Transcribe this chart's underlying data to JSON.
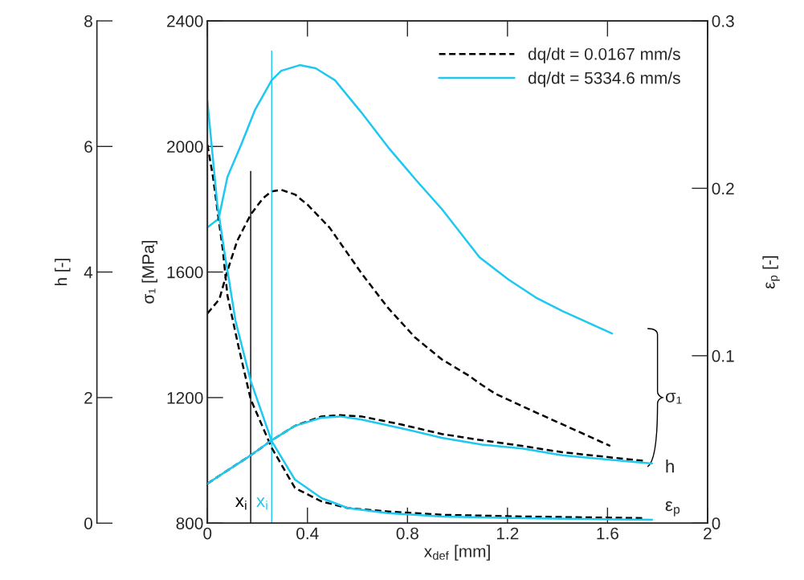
{
  "chart_data": {
    "type": "line",
    "xlabel": "x$_{def}$ [mm]",
    "ylabel": "σ₁ [MPa]",
    "y2label": "ε$_{p}$ [-]",
    "y3label": "h [-]",
    "xlim": [
      0,
      2
    ],
    "xticks": [
      0,
      0.4,
      0.8,
      1.2,
      1.6,
      2
    ],
    "ylim": [
      800,
      2400
    ],
    "yticks": [
      800,
      1200,
      1600,
      2000,
      2400
    ],
    "y2lim": [
      0,
      0.3
    ],
    "y2ticks": [
      0,
      0.1,
      0.2,
      0.3
    ],
    "y3lim": [
      0,
      8
    ],
    "y3ticks": [
      0,
      2,
      4,
      6,
      8
    ],
    "legend": "top right",
    "grid": false,
    "marker": "none",
    "series": [
      {
        "name": "dq/dt = 0.0167 mm/s",
        "color": "#000000",
        "line_style": "dashed",
        "x": [
          0,
          0.048,
          0.08,
          0.119,
          0.173,
          0.221,
          0.257,
          0.295,
          0.35,
          0.401,
          0.488,
          0.616,
          0.722,
          0.831,
          0.937,
          1.043,
          1.098,
          1.152,
          1.313,
          1.611
        ],
        "values": [
          1468,
          1514,
          1604,
          1699,
          1783,
          1834,
          1857,
          1862,
          1847,
          1814,
          1742,
          1596,
          1486,
          1391,
          1322,
          1271,
          1240,
          1212,
          1153,
          1046
        ]
      },
      {
        "name": "dq/dt = 5334.6 mm/s",
        "color": "#1ec8f0",
        "line_style": "solid",
        "x": [
          0,
          0.045,
          0.08,
          0.135,
          0.19,
          0.257,
          0.295,
          0.369,
          0.433,
          0.51,
          0.616,
          0.722,
          0.831,
          0.937,
          1.088,
          1.204,
          1.313,
          1.419,
          1.618
        ],
        "values": [
          1742,
          1770,
          1903,
          2006,
          2116,
          2211,
          2241,
          2259,
          2249,
          2211,
          2108,
          1998,
          1896,
          1801,
          1647,
          1576,
          1519,
          1476,
          1404
        ]
      },
      {
        "color": "#000000",
        "line_style": "dashed",
        "axis": "y3",
        "x": [
          0,
          0.08,
          0.173,
          0.257,
          0.35,
          0.456,
          0.53,
          0.616,
          0.777,
          0.937,
          1.098,
          1.258,
          1.419,
          1.749
        ],
        "values": [
          0.63,
          0.84,
          1.08,
          1.32,
          1.55,
          1.7,
          1.72,
          1.7,
          1.57,
          1.42,
          1.32,
          1.23,
          1.13,
          0.99
        ]
      },
      {
        "color": "#1ec8f0",
        "line_style": "solid",
        "axis": "y3",
        "x": [
          0,
          0.08,
          0.173,
          0.257,
          0.35,
          0.456,
          0.53,
          0.616,
          0.777,
          0.937,
          1.098,
          1.258,
          1.419,
          1.778
        ],
        "values": [
          0.63,
          0.84,
          1.08,
          1.32,
          1.55,
          1.68,
          1.7,
          1.65,
          1.51,
          1.36,
          1.25,
          1.19,
          1.08,
          0.95
        ]
      },
      {
        "color": "#000000",
        "line_style": "dashed",
        "axis": "y2",
        "x": [
          0,
          0.022,
          0.048,
          0.061,
          0.08,
          0.125,
          0.173,
          0.257,
          0.35,
          0.456,
          0.562,
          0.722,
          0.937,
          1.258,
          1.749
        ],
        "values": [
          0.226,
          0.207,
          0.178,
          0.164,
          0.136,
          0.105,
          0.074,
          0.045,
          0.021,
          0.013,
          0.009,
          0.007,
          0.005,
          0.004,
          0.003
        ]
      },
      {
        "color": "#1ec8f0",
        "line_style": "solid",
        "axis": "y2",
        "x": [
          0,
          0.039,
          0.071,
          0.08,
          0.112,
          0.173,
          0.257,
          0.35,
          0.456,
          0.562,
          0.722,
          0.937,
          1.258,
          1.778
        ],
        "values": [
          0.252,
          0.191,
          0.159,
          0.151,
          0.121,
          0.085,
          0.049,
          0.026,
          0.015,
          0.009,
          0.006,
          0.004,
          0.003,
          0.002
        ]
      }
    ],
    "ref_lines": [
      {
        "axis": "x",
        "value": 0.173,
        "label": "x$_{i}$",
        "color": "#000000"
      },
      {
        "axis": "x",
        "value": 0.257,
        "label": "x$_{i}$",
        "color": "#1ec8f0"
      }
    ],
    "annotations": [
      "σ₁",
      "h",
      "ε$_{p}$"
    ]
  }
}
